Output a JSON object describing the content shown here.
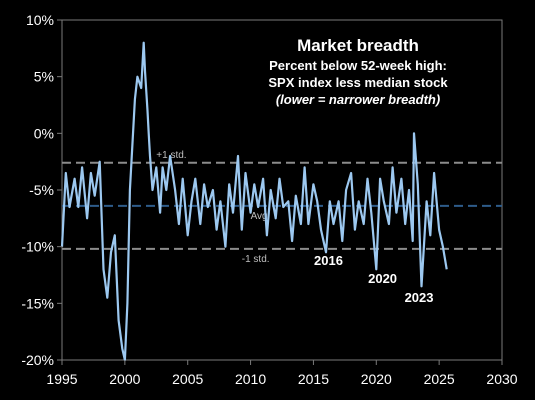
{
  "chart_data": {
    "type": "line",
    "title": "Market breadth",
    "subtitle_line1": "Percent below 52-week high:",
    "subtitle_line2": "SPX index less median stock",
    "subtitle_line3": "(lower = narrower breadth)",
    "xlim": [
      1995,
      2030
    ],
    "ylim": [
      -20,
      10
    ],
    "x_ticks": [
      1995,
      2000,
      2005,
      2010,
      2015,
      2020,
      2025,
      2030
    ],
    "x_tick_labels": [
      "1995",
      "2000",
      "2005",
      "2010",
      "2015",
      "2020",
      "2025",
      "2030"
    ],
    "y_ticks": [
      10,
      5,
      0,
      -5,
      -10,
      -15,
      -20
    ],
    "y_tick_labels": [
      "10%",
      "5%",
      "0%",
      "-5%",
      "-10%",
      "-15%",
      "-20%"
    ],
    "grid": false,
    "reference_lines": [
      {
        "value": -2.6,
        "label": "+1 std.",
        "color": "#8c8c8c",
        "label_x": 2002.5
      },
      {
        "value": -6.4,
        "label": "Avg",
        "color": "#2e5c8a",
        "label_x": 2010.0
      },
      {
        "value": -10.2,
        "label": "-1 std.",
        "color": "#8c8c8c",
        "label_x": 2009.3
      }
    ],
    "annotations": [
      {
        "text": "2016",
        "x": 2016.2,
        "y": -11.6
      },
      {
        "text": "2020",
        "x": 2020.5,
        "y": -13.2
      },
      {
        "text": "2023",
        "x": 2023.4,
        "y": -14.9
      }
    ],
    "series": [
      {
        "color": "#9cc8f0",
        "x": [
          1995.0,
          1995.3,
          1995.6,
          1996.0,
          1996.3,
          1996.6,
          1997.0,
          1997.3,
          1997.6,
          1998.0,
          1998.3,
          1998.6,
          1998.9,
          1999.2,
          1999.5,
          1999.8,
          2000.0,
          2000.2,
          2000.4,
          2000.6,
          2000.8,
          2001.0,
          2001.3,
          2001.5,
          2001.6,
          2001.8,
          2001.9,
          2002.0,
          2002.2,
          2002.5,
          2002.8,
          2003.0,
          2003.3,
          2003.6,
          2004.0,
          2004.3,
          2004.6,
          2005.0,
          2005.3,
          2005.6,
          2006.0,
          2006.3,
          2006.6,
          2007.0,
          2007.3,
          2007.6,
          2008.0,
          2008.3,
          2008.6,
          2009.0,
          2009.3,
          2009.6,
          2010.0,
          2010.3,
          2010.6,
          2011.0,
          2011.3,
          2011.6,
          2012.0,
          2012.3,
          2012.6,
          2013.0,
          2013.3,
          2013.6,
          2014.0,
          2014.3,
          2014.6,
          2015.0,
          2015.3,
          2015.6,
          2016.0,
          2016.3,
          2016.6,
          2017.0,
          2017.3,
          2017.6,
          2018.0,
          2018.3,
          2018.6,
          2019.0,
          2019.3,
          2019.6,
          2020.0,
          2020.3,
          2020.6,
          2021.0,
          2021.3,
          2021.6,
          2022.0,
          2022.3,
          2022.6,
          2022.9,
          2023.0,
          2023.3,
          2023.6,
          2024.0,
          2024.3,
          2024.6,
          2025.0,
          2025.3,
          2025.6
        ],
        "y": [
          -10.0,
          -3.5,
          -6.5,
          -4.0,
          -6.5,
          -3.0,
          -7.5,
          -3.5,
          -5.5,
          -2.5,
          -12.0,
          -14.5,
          -10.5,
          -9.0,
          -16.5,
          -19.0,
          -20.0,
          -15.0,
          -5.0,
          -1.0,
          3.0,
          5.0,
          4.0,
          8.0,
          5.5,
          2.0,
          0.0,
          -2.0,
          -5.0,
          -3.0,
          -7.0,
          -3.0,
          -5.0,
          -2.0,
          -5.0,
          -8.0,
          -4.0,
          -9.0,
          -6.0,
          -4.0,
          -8.0,
          -4.5,
          -6.5,
          -5.0,
          -8.5,
          -6.0,
          -10.0,
          -4.5,
          -7.0,
          -2.0,
          -8.5,
          -3.5,
          -7.0,
          -4.5,
          -6.5,
          -4.0,
          -9.0,
          -5.0,
          -7.5,
          -4.0,
          -6.5,
          -6.0,
          -9.5,
          -5.5,
          -8.0,
          -3.0,
          -8.0,
          -4.5,
          -6.0,
          -8.5,
          -10.5,
          -6.0,
          -8.0,
          -6.0,
          -9.5,
          -5.0,
          -3.5,
          -8.5,
          -6.0,
          -8.0,
          -4.0,
          -7.0,
          -12.0,
          -4.0,
          -6.0,
          -8.0,
          -3.0,
          -7.0,
          -4.0,
          -8.0,
          -5.0,
          -9.5,
          0.0,
          -4.5,
          -13.5,
          -6.0,
          -9.0,
          -3.5,
          -8.5,
          -10.0,
          -12.0
        ]
      }
    ]
  }
}
